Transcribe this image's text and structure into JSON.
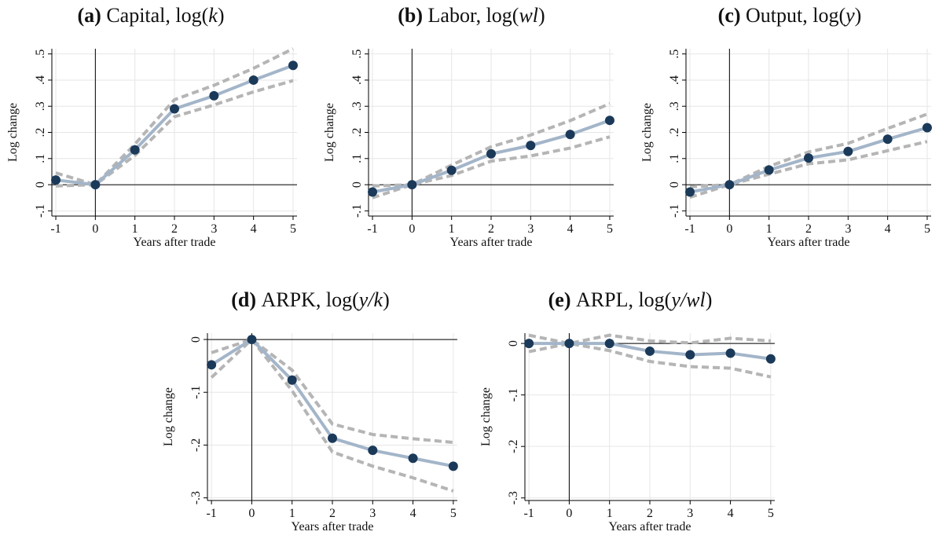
{
  "chart_data": [
    {
      "type": "line",
      "panel_letter": "(a)",
      "title": "Capital, log(k)",
      "title_parts": {
        "prefix": "Capital, log(",
        "var": "k",
        "suffix": ")"
      },
      "xlabel": "Years after trade",
      "ylabel": "Log change",
      "x": [
        -1,
        0,
        1,
        2,
        3,
        4,
        5
      ],
      "xlim": [
        -1.1,
        5.1
      ],
      "ylim": [
        -0.12,
        0.52
      ],
      "yticks": [
        -0.1,
        0,
        0.1,
        0.2,
        0.3,
        0.4,
        0.5
      ],
      "ytick_labels": [
        "-.1",
        "0",
        ".1",
        ".2",
        ".3",
        ".4",
        ".5"
      ],
      "grid": true,
      "series": [
        {
          "role": "estimate",
          "values": [
            0.018,
            0.0,
            0.133,
            0.29,
            0.34,
            0.4,
            0.456
          ]
        },
        {
          "role": "ci_upper",
          "values": [
            0.045,
            0.0,
            0.155,
            0.325,
            0.38,
            0.445,
            0.52
          ]
        },
        {
          "role": "ci_lower",
          "values": [
            -0.005,
            0.0,
            0.112,
            0.26,
            0.305,
            0.355,
            0.398
          ]
        }
      ]
    },
    {
      "type": "line",
      "panel_letter": "(b)",
      "title": "Labor, log(wl)",
      "title_parts": {
        "prefix": "Labor, log(",
        "var": "wl",
        "suffix": ")"
      },
      "xlabel": "Years after trade",
      "ylabel": "Log change",
      "x": [
        -1,
        0,
        1,
        2,
        3,
        4,
        5
      ],
      "xlim": [
        -1.1,
        5.1
      ],
      "ylim": [
        -0.12,
        0.52
      ],
      "yticks": [
        -0.1,
        0,
        0.1,
        0.2,
        0.3,
        0.4,
        0.5
      ],
      "ytick_labels": [
        "-.1",
        "0",
        ".1",
        ".2",
        ".3",
        ".4",
        ".5"
      ],
      "grid": true,
      "series": [
        {
          "role": "estimate",
          "values": [
            -0.028,
            0.0,
            0.055,
            0.118,
            0.15,
            0.192,
            0.246
          ]
        },
        {
          "role": "ci_upper",
          "values": [
            -0.005,
            0.0,
            0.075,
            0.145,
            0.19,
            0.245,
            0.31
          ]
        },
        {
          "role": "ci_lower",
          "values": [
            -0.05,
            0.0,
            0.035,
            0.09,
            0.11,
            0.14,
            0.183
          ]
        }
      ]
    },
    {
      "type": "line",
      "panel_letter": "(c)",
      "title": "Output, log(y)",
      "title_parts": {
        "prefix": "Output, log(",
        "var": "y",
        "suffix": ")"
      },
      "xlabel": "Years after trade",
      "ylabel": "Log change",
      "x": [
        -1,
        0,
        1,
        2,
        3,
        4,
        5
      ],
      "xlim": [
        -1.1,
        5.1
      ],
      "ylim": [
        -0.12,
        0.52
      ],
      "yticks": [
        -0.1,
        0,
        0.1,
        0.2,
        0.3,
        0.4,
        0.5
      ],
      "ytick_labels": [
        "-.1",
        "0",
        ".1",
        ".2",
        ".3",
        ".4",
        ".5"
      ],
      "grid": true,
      "series": [
        {
          "role": "estimate",
          "values": [
            -0.028,
            0.0,
            0.056,
            0.102,
            0.127,
            0.174,
            0.218
          ]
        },
        {
          "role": "ci_upper",
          "values": [
            -0.008,
            0.0,
            0.07,
            0.125,
            0.158,
            0.215,
            0.27
          ]
        },
        {
          "role": "ci_lower",
          "values": [
            -0.048,
            0.0,
            0.04,
            0.08,
            0.095,
            0.13,
            0.165
          ]
        }
      ]
    },
    {
      "type": "line",
      "panel_letter": "(d)",
      "title": "ARPK, log(y/k)",
      "title_parts": {
        "prefix": "ARPK, log(",
        "var": "y/k",
        "suffix": ")"
      },
      "xlabel": "Years after trade",
      "ylabel": "Log change",
      "x": [
        -1,
        0,
        1,
        2,
        3,
        4,
        5
      ],
      "xlim": [
        -1.1,
        5.1
      ],
      "ylim": [
        -0.305,
        0.012
      ],
      "yticks": [
        -0.3,
        -0.2,
        -0.1,
        0
      ],
      "ytick_labels": [
        "-.3",
        "-.2",
        "-.1",
        "0"
      ],
      "grid": true,
      "series": [
        {
          "role": "estimate",
          "values": [
            -0.048,
            0.0,
            -0.077,
            -0.187,
            -0.21,
            -0.225,
            -0.24
          ]
        },
        {
          "role": "ci_upper",
          "values": [
            -0.025,
            0.0,
            -0.058,
            -0.16,
            -0.18,
            -0.188,
            -0.195
          ]
        },
        {
          "role": "ci_lower",
          "values": [
            -0.072,
            0.0,
            -0.097,
            -0.213,
            -0.24,
            -0.262,
            -0.287
          ]
        }
      ]
    },
    {
      "type": "line",
      "panel_letter": "(e)",
      "title": "ARPL, log(y/wl)",
      "title_parts": {
        "prefix": "ARPL, log(",
        "var": "y/wl",
        "suffix": ")"
      },
      "xlabel": "Years after trade",
      "ylabel": "Log change",
      "x": [
        -1,
        0,
        1,
        2,
        3,
        4,
        5
      ],
      "xlim": [
        -1.1,
        5.1
      ],
      "ylim": [
        -0.305,
        0.02
      ],
      "yticks": [
        -0.3,
        -0.2,
        -0.1,
        0
      ],
      "ytick_labels": [
        "-.3",
        "-.2",
        "-.1",
        "0"
      ],
      "grid": true,
      "series": [
        {
          "role": "estimate",
          "values": [
            0.0,
            0.0,
            0.0,
            -0.015,
            -0.022,
            -0.019,
            -0.03
          ]
        },
        {
          "role": "ci_upper",
          "values": [
            0.016,
            0.0,
            0.016,
            0.005,
            0.001,
            0.01,
            0.005
          ]
        },
        {
          "role": "ci_lower",
          "values": [
            -0.016,
            0.0,
            -0.014,
            -0.035,
            -0.045,
            -0.048,
            -0.065
          ]
        }
      ]
    }
  ]
}
